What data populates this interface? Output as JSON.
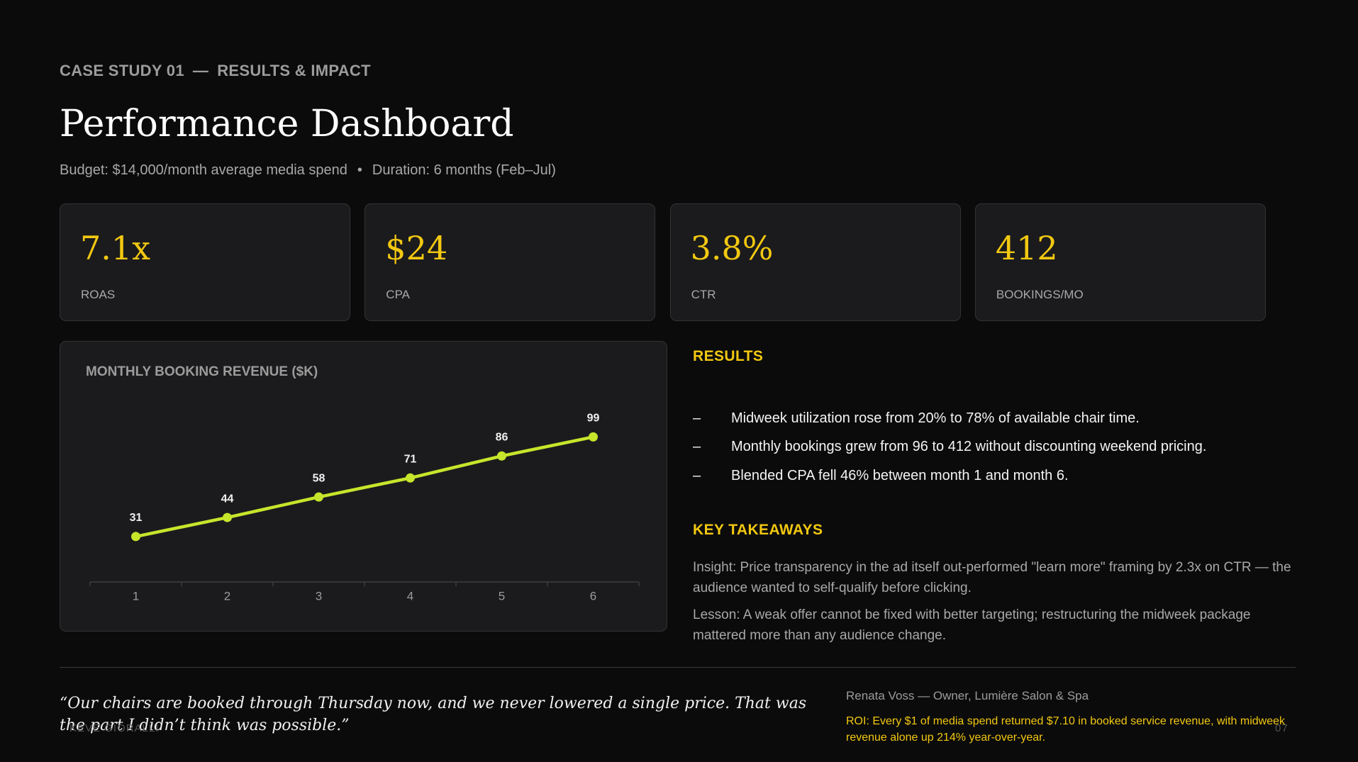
{
  "header": {
    "eyebrow": "CASE STUDY 01",
    "separator": "—",
    "section": "RESULTS & IMPACT",
    "title": "Performance Dashboard",
    "budget": "Budget: $14,000/month average media spend",
    "bullet": "•",
    "duration": "Duration: 6 months (Feb–Jul)"
  },
  "kpis": [
    {
      "value": "7.1x",
      "label": "ROAS"
    },
    {
      "value": "$24",
      "label": "CPA"
    },
    {
      "value": "3.8%",
      "label": "CTR"
    },
    {
      "value": "412",
      "label": "BOOKINGS/MO"
    }
  ],
  "chart_data": {
    "type": "line",
    "title": "MONTHLY BOOKING REVENUE ($K)",
    "categories": [
      "1",
      "2",
      "3",
      "4",
      "5",
      "6"
    ],
    "values": [
      31,
      44,
      58,
      71,
      86,
      99
    ],
    "color": "#c6e62b",
    "ylim": [
      0,
      120
    ]
  },
  "results": {
    "heading": "RESULTS",
    "dash": "–",
    "items": [
      "Midweek utilization rose from 20% to 78% of available chair time.",
      "Monthly bookings grew from 96 to 412 without discounting weekend pricing.",
      "Blended CPA fell 46% between month 1 and month 6."
    ]
  },
  "takeaways": {
    "heading": "KEY TAKEAWAYS",
    "items": [
      "Insight: Price transparency in the ad itself out-performed \"learn more\" framing by 2.3x on CTR — the audience wanted to self-qualify before clicking.",
      "Lesson: A weak offer cannot be fixed with better targeting; restructuring the midweek package mattered more than any audience change."
    ]
  },
  "testimonial": {
    "quote": "“Our chairs are booked through Thursday now, and we never lowered a single price. That was the part I didn’t think was possible.”",
    "attribution": "Renata Voss — Owner, Lumière Salon & Spa",
    "roi": "ROI: Every $1 of media spend returned $7.10 in booked service revenue, with midweek revenue alone up 214% year-over-year."
  },
  "footer": {
    "brand": "KEVE GIORALLI",
    "page": "07"
  }
}
